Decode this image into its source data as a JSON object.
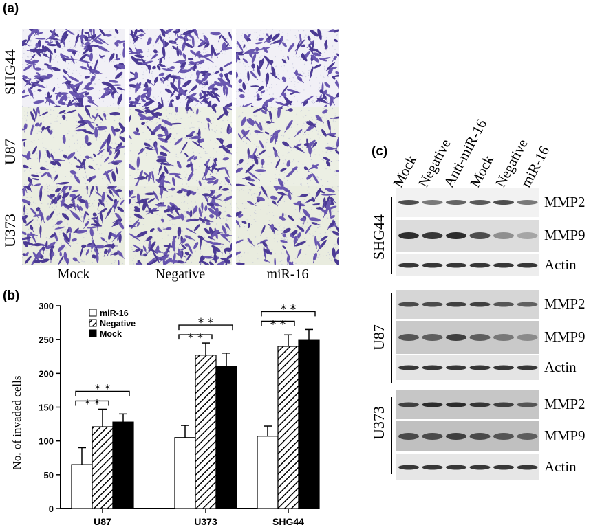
{
  "figure": {
    "panel_a": {
      "label": "(a)",
      "row_labels": [
        "SHG44",
        "U87",
        "U373"
      ],
      "column_labels": [
        "Mock",
        "Negative",
        "miR-16"
      ],
      "cell_density": [
        [
          0.95,
          1.0,
          0.6
        ],
        [
          0.45,
          0.55,
          0.35
        ],
        [
          0.8,
          0.85,
          0.45
        ]
      ]
    },
    "panel_b": {
      "label": "(b)",
      "significance_mark": "* *"
    },
    "panel_c": {
      "label": "(c)",
      "lane_labels": [
        "Mock",
        "Negative",
        "Anti-miR-16",
        "Mock",
        "Negative",
        "miR-16"
      ],
      "groups": [
        {
          "cell_line": "SHG44",
          "rows": [
            "MMP2",
            "MMP9",
            "Actin"
          ]
        },
        {
          "cell_line": "U87",
          "rows": [
            "MMP2",
            "MMP9",
            "Actin"
          ]
        },
        {
          "cell_line": "U373",
          "rows": [
            "MMP2",
            "MMP9",
            "Actin"
          ]
        }
      ]
    }
  },
  "chart_data": {
    "type": "bar",
    "title": "",
    "ylabel": "No. of invaded cells",
    "xlabel": "",
    "categories": [
      "U87",
      "U373",
      "SHG44"
    ],
    "ylim": [
      0,
      300
    ],
    "yticks": [
      "0",
      "50",
      "100",
      "150",
      "200",
      "250",
      "300"
    ],
    "series": [
      {
        "name": "miR-16",
        "values": [
          65,
          105,
          107
        ],
        "errors": [
          25,
          18,
          15
        ],
        "fill": "#ffffff"
      },
      {
        "name": "Negative",
        "values": [
          121,
          227,
          240
        ],
        "errors": [
          26,
          18,
          17
        ],
        "fill": "hatch"
      },
      {
        "name": "Mock",
        "values": [
          128,
          210,
          249
        ],
        "errors": [
          12,
          20,
          16
        ],
        "fill": "#000000"
      }
    ],
    "legend": "top-left"
  }
}
